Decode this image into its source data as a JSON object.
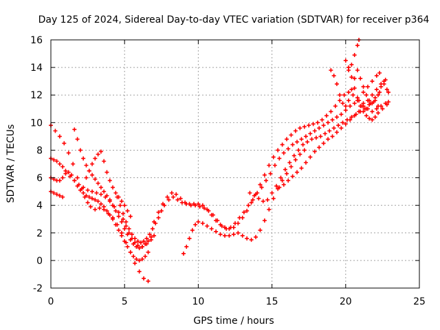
{
  "chart_data": {
    "type": "scatter",
    "title": "Day 125 of 2024, Sidereal Day-to-day VTEC variation (SDTVAR) for receiver p364",
    "xlabel": "GPS time / hours",
    "ylabel": "SDTVAR / TECUs",
    "xlim": [
      0,
      25
    ],
    "ylim": [
      -2,
      16
    ],
    "x_ticks": [
      "0",
      "5",
      "10",
      "15",
      "20",
      "25"
    ],
    "y_ticks": [
      "-2",
      "0",
      "2",
      "4",
      "6",
      "8",
      "10",
      "12",
      "14",
      "16"
    ],
    "x_tick_values": [
      0,
      5,
      10,
      15,
      20,
      25
    ],
    "y_tick_values": [
      -2,
      0,
      2,
      4,
      6,
      8,
      10,
      12,
      14,
      16
    ],
    "grid": true,
    "marker": "+",
    "color": "#ff0000",
    "series": [
      {
        "x": [
          0.0,
          0.3,
          0.6,
          0.9,
          1.2,
          1.5,
          1.8,
          2.1,
          2.3,
          2.5,
          2.7,
          3.0,
          3.3,
          3.6,
          3.9,
          4.2,
          4.5,
          4.8,
          5.1,
          5.4,
          5.7,
          6.0,
          6.3,
          6.6
        ],
        "y": [
          9.8,
          9.4,
          9.0,
          8.5,
          7.8,
          7.0,
          6.0,
          5.2,
          4.6,
          4.2,
          3.9,
          3.7,
          3.8,
          3.7,
          3.4,
          3.1,
          2.6,
          2.0,
          1.3,
          0.6,
          -0.2,
          -0.8,
          -1.3,
          -1.5
        ]
      },
      {
        "x": [
          0.0,
          0.2,
          0.4,
          0.6,
          0.8,
          1.0,
          1.3,
          1.6,
          1.9,
          2.2,
          2.5,
          2.8,
          3.1,
          3.4,
          3.7,
          4.0,
          4.3,
          4.6,
          4.9,
          5.1,
          5.3,
          5.5,
          5.7,
          5.9,
          6.2,
          6.5,
          6.8,
          7.0
        ],
        "y": [
          7.4,
          7.3,
          7.2,
          7.0,
          6.8,
          6.5,
          6.1,
          5.8,
          5.5,
          5.3,
          5.1,
          5.0,
          4.9,
          4.8,
          4.6,
          4.3,
          3.9,
          3.5,
          3.0,
          2.5,
          2.0,
          1.6,
          1.3,
          1.1,
          1.0,
          1.2,
          1.5,
          1.8
        ]
      },
      {
        "x": [
          0.0,
          0.2,
          0.4,
          0.6,
          0.8,
          1.0,
          1.2,
          1.4,
          1.6,
          1.8,
          2.0,
          2.2,
          2.4,
          2.6,
          2.8,
          3.0,
          3.2,
          3.4,
          3.6,
          3.8,
          4.0,
          4.2,
          4.4,
          4.6,
          4.8,
          5.0,
          5.2,
          5.4,
          5.6,
          5.8,
          6.0,
          6.2,
          6.4,
          6.6
        ],
        "y": [
          6.0,
          5.9,
          5.8,
          5.8,
          6.0,
          6.3,
          6.4,
          6.2,
          5.8,
          5.4,
          5.1,
          4.9,
          4.7,
          4.6,
          4.5,
          4.4,
          4.3,
          4.1,
          3.9,
          3.6,
          3.3,
          3.0,
          2.6,
          2.2,
          1.8,
          1.4,
          1.0,
          0.6,
          0.3,
          0.1,
          0.0,
          0.1,
          0.3,
          0.6
        ]
      },
      {
        "x": [
          0.0,
          0.2,
          0.4,
          0.6,
          0.8
        ],
        "y": [
          5.0,
          4.9,
          4.8,
          4.7,
          4.6
        ]
      },
      {
        "x": [
          1.6,
          1.8,
          2.0,
          2.2,
          2.4,
          2.6,
          2.8,
          3.0,
          3.2,
          3.4,
          3.6,
          3.8,
          4.0,
          4.2,
          4.4,
          4.6,
          4.8,
          5.0,
          5.2,
          5.4,
          5.6,
          5.8,
          6.0,
          6.2,
          6.4,
          6.6,
          6.8
        ],
        "y": [
          9.5,
          8.8,
          8.0,
          7.4,
          6.9,
          6.5,
          6.2,
          5.9,
          5.6,
          5.3,
          5.0,
          4.7,
          4.4,
          4.0,
          3.6,
          3.2,
          2.8,
          2.3,
          1.9,
          1.5,
          1.2,
          1.0,
          0.9,
          1.0,
          1.2,
          1.4,
          1.7
        ]
      },
      {
        "x": [
          2.4,
          2.6,
          2.8,
          3.0,
          3.2,
          3.4,
          3.6,
          3.8,
          4.0,
          4.2,
          4.4,
          4.6,
          4.8,
          5.0,
          5.2,
          5.4
        ],
        "y": [
          6.0,
          6.5,
          7.0,
          7.4,
          7.7,
          7.9,
          7.2,
          6.4,
          5.8,
          5.3,
          4.9,
          4.6,
          4.3,
          4.0,
          3.6,
          3.2
        ]
      },
      {
        "x": [
          4.5,
          4.7,
          4.9,
          5.1,
          5.3,
          5.5,
          5.7,
          5.9,
          6.1,
          6.3,
          6.5,
          6.7,
          6.9,
          7.1,
          7.3,
          7.5,
          7.7,
          8.0,
          8.3,
          8.6,
          8.9,
          9.2,
          9.5,
          9.8,
          10.1,
          10.4,
          10.7,
          11.0,
          11.3,
          11.6,
          11.9,
          12.2,
          12.5,
          12.8,
          13.1,
          13.4,
          13.7,
          14.0,
          14.3,
          14.6,
          14.9,
          15.2,
          15.5,
          15.8,
          16.1,
          16.4,
          16.7,
          17.0,
          17.3,
          17.6,
          17.9,
          18.2,
          18.5,
          18.8,
          19.1,
          19.4,
          19.7,
          20.0,
          20.3,
          20.6,
          20.9,
          21.2,
          21.5,
          21.8,
          22.1,
          22.4,
          22.7,
          22.9
        ],
        "y": [
          4.6,
          4.0,
          3.4,
          2.8,
          2.3,
          1.9,
          1.6,
          1.4,
          1.3,
          1.4,
          1.6,
          1.9,
          2.3,
          2.7,
          3.1,
          3.6,
          4.0,
          4.4,
          4.6,
          4.4,
          4.2,
          4.1,
          4.0,
          4.0,
          3.9,
          3.8,
          3.6,
          3.3,
          2.9,
          2.5,
          2.3,
          2.4,
          2.7,
          3.1,
          3.5,
          4.0,
          4.4,
          4.9,
          5.3,
          5.8,
          6.3,
          6.9,
          7.4,
          7.8,
          8.1,
          8.4,
          8.6,
          8.8,
          9.0,
          9.2,
          9.4,
          9.6,
          9.8,
          10.0,
          10.2,
          10.4,
          10.6,
          10.9,
          11.2,
          11.4,
          11.6,
          11.4,
          11.0,
          10.8,
          11.0,
          11.2,
          11.4,
          11.5
        ]
      },
      {
        "x": [
          7.0,
          7.3,
          7.6,
          7.9,
          8.2,
          8.5,
          8.8,
          9.1,
          9.4,
          9.7,
          10.0,
          10.3,
          10.6,
          10.9,
          11.2,
          11.5,
          11.8,
          12.1,
          12.4,
          12.7,
          13.0,
          13.3,
          13.6,
          13.9,
          14.2,
          14.5,
          14.8,
          15.1,
          15.4,
          15.7,
          16.0,
          16.3,
          16.6,
          16.9,
          17.2,
          17.5,
          17.8,
          18.1,
          18.4,
          18.7,
          19.0,
          19.3,
          19.6,
          19.9,
          20.2,
          20.5,
          20.8,
          21.1,
          21.4,
          21.7,
          22.0,
          22.3,
          22.6,
          22.9
        ],
        "y": [
          2.8,
          3.5,
          4.1,
          4.6,
          4.9,
          4.8,
          4.5,
          4.2,
          4.1,
          4.1,
          4.1,
          4.0,
          3.7,
          3.3,
          2.9,
          2.6,
          2.4,
          2.3,
          2.4,
          2.7,
          3.1,
          3.6,
          4.2,
          4.8,
          5.5,
          6.2,
          6.9,
          7.5,
          8.0,
          8.4,
          8.8,
          9.1,
          9.4,
          9.6,
          9.7,
          9.8,
          9.9,
          10.0,
          10.2,
          10.5,
          10.8,
          11.2,
          11.6,
          12.0,
          12.2,
          12.0,
          11.6,
          11.2,
          11.0,
          11.4,
          11.8,
          12.2,
          12.8,
          12.2
        ]
      },
      {
        "x": [
          9.0,
          9.2,
          9.4,
          9.6,
          9.8,
          10.0,
          10.3,
          10.6,
          10.9,
          11.2,
          11.5,
          11.8,
          12.1,
          12.4,
          12.7,
          13.0,
          13.3,
          13.6,
          13.9,
          14.2,
          14.5,
          14.8,
          15.1,
          15.4,
          15.7,
          16.0,
          16.3,
          16.6,
          16.9,
          17.2
        ],
        "y": [
          0.5,
          1.0,
          1.6,
          2.2,
          2.6,
          2.8,
          2.7,
          2.5,
          2.3,
          2.1,
          1.9,
          1.8,
          1.8,
          1.9,
          2.0,
          1.8,
          1.6,
          1.5,
          1.7,
          2.2,
          2.9,
          3.7,
          4.5,
          5.2,
          5.8,
          6.3,
          6.8,
          7.3,
          7.7,
          8.0
        ]
      },
      {
        "x": [
          13.5,
          13.8,
          14.1,
          14.4,
          14.7,
          15.0,
          15.3,
          15.6,
          15.9,
          16.2,
          16.5,
          16.8,
          17.1,
          17.4,
          17.7,
          18.0,
          18.3,
          18.6,
          18.9,
          19.2,
          19.5,
          19.8,
          20.1,
          20.4,
          20.7,
          21.0,
          21.3,
          21.6,
          21.9,
          22.2,
          22.5,
          22.8
        ],
        "y": [
          4.9,
          4.7,
          4.5,
          4.3,
          4.4,
          4.9,
          5.4,
          6.0,
          6.6,
          7.1,
          7.6,
          8.0,
          8.4,
          8.6,
          8.8,
          8.9,
          9.0,
          9.2,
          9.4,
          9.6,
          9.8,
          10.0,
          10.2,
          10.4,
          10.6,
          10.8,
          11.0,
          11.3,
          11.5,
          11.2,
          11.0,
          11.3
        ]
      },
      {
        "x": [
          15.5,
          15.8,
          16.1,
          16.4,
          16.7,
          17.0,
          17.3,
          17.6,
          17.9,
          18.2,
          18.5,
          18.8,
          19.1,
          19.4,
          19.7,
          20.0,
          20.3,
          20.6,
          20.9,
          21.2,
          21.5,
          21.8,
          22.1,
          22.4,
          22.7
        ],
        "y": [
          5.3,
          5.5,
          5.8,
          6.1,
          6.4,
          6.7,
          7.1,
          7.5,
          7.9,
          8.2,
          8.5,
          8.8,
          9.0,
          9.3,
          9.6,
          9.9,
          10.2,
          10.5,
          10.8,
          11.2,
          11.6,
          12.0,
          12.4,
          12.8,
          13.1
        ]
      },
      {
        "x": [
          19.0,
          19.2,
          19.4,
          19.6,
          19.8,
          20.0,
          20.2,
          20.4,
          20.6,
          20.8,
          21.0,
          21.2,
          21.4,
          21.6,
          21.8,
          22.0,
          22.2,
          22.4,
          22.6,
          22.8
        ],
        "y": [
          13.8,
          13.4,
          12.8,
          12.0,
          11.4,
          11.2,
          11.6,
          12.4,
          13.2,
          13.8,
          13.2,
          12.6,
          12.0,
          11.6,
          11.4,
          11.6,
          12.0,
          12.6,
          13.0,
          12.4
        ]
      },
      {
        "x": [
          20.0,
          20.2,
          20.4,
          20.6,
          20.8,
          21.0,
          21.2,
          21.4,
          21.6,
          21.8,
          22.0,
          22.2
        ],
        "y": [
          14.5,
          14.0,
          13.3,
          12.5,
          11.8,
          11.2,
          10.8,
          10.5,
          10.3,
          10.2,
          10.4,
          10.7
        ]
      },
      {
        "x": [
          20.2,
          20.4,
          20.6,
          20.8,
          20.9
        ],
        "y": [
          13.8,
          14.2,
          14.9,
          15.6,
          16.0
        ]
      },
      {
        "x": [
          21.2,
          21.5,
          21.8,
          22.1,
          22.3
        ],
        "y": [
          12.2,
          12.6,
          13.0,
          13.4,
          13.6
        ]
      }
    ]
  }
}
